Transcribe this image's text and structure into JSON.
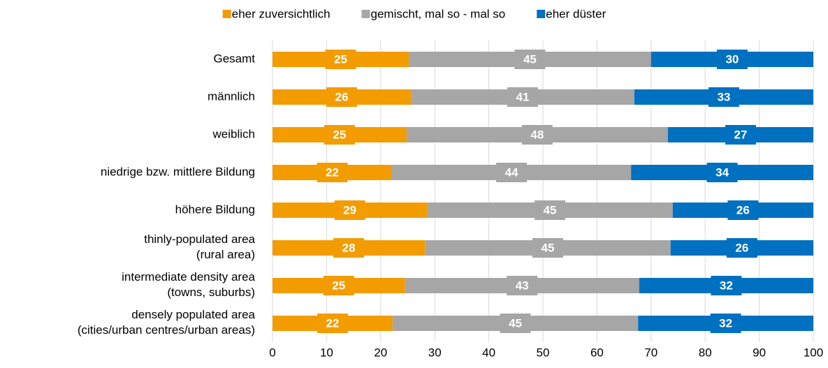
{
  "chart_data": {
    "type": "stacked_barh",
    "categories": [
      "Gesamt",
      "männlich",
      "weiblich",
      "niedrige bzw. mittlere Bildung",
      "höhere Bildung",
      "thinly-populated area\n(rural area)",
      "intermediate density area\n(towns, suburbs)",
      "densely populated area\n(cities/urban centres/urban areas)"
    ],
    "series": [
      {
        "name": "eher zuversichtlich",
        "color": "#f39c00",
        "values": [
          25.2,
          25.6,
          24.8,
          22.1,
          28.6,
          28.2,
          24.5,
          22.2
        ],
        "value_labels": [
          "25",
          "26",
          "25",
          "22",
          "29",
          "28",
          "25",
          "22"
        ]
      },
      {
        "name": "gemischt, mal so - mal so",
        "color": "#a6a6a6",
        "values": [
          44.8,
          41.3,
          48.3,
          44.2,
          45.4,
          45.4,
          43.3,
          45.4
        ],
        "value_labels": [
          "45",
          "41",
          "48",
          "44",
          "45",
          "45",
          "43",
          "45"
        ]
      },
      {
        "name": "eher düster",
        "color": "#0070c0",
        "values": [
          30.0,
          33.1,
          26.9,
          33.7,
          26.0,
          26.4,
          32.2,
          32.4
        ],
        "value_labels": [
          "30",
          "33",
          "27",
          "34",
          "26",
          "26",
          "32",
          "32"
        ]
      }
    ],
    "xlim": [
      0,
      100
    ],
    "xticks": [
      0,
      10,
      20,
      30,
      40,
      50,
      60,
      70,
      80,
      90,
      100
    ],
    "grid": true,
    "legend": "top"
  }
}
